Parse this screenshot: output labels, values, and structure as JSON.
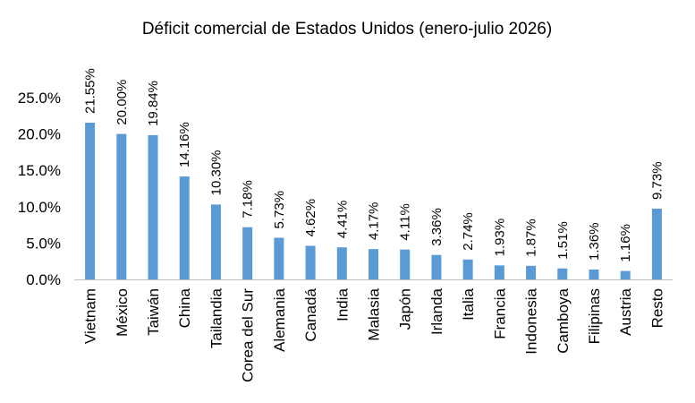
{
  "chart_data": {
    "type": "bar",
    "title": "Déficit comercial de Estados Unidos (enero-julio 2026)",
    "categories": [
      "Vietnam",
      "México",
      "Taiwán",
      "China",
      "Tailandia",
      "Corea del Sur",
      "Alemania",
      "Canadá",
      "India",
      "Malasia",
      "Japón",
      "Irlanda",
      "Italia",
      "Francia",
      "Indonesia",
      "Camboya",
      "Filipinas",
      "Austria",
      "Resto"
    ],
    "values": [
      21.55,
      20.0,
      19.84,
      14.16,
      10.3,
      7.18,
      5.73,
      4.62,
      4.41,
      4.17,
      4.11,
      3.36,
      2.74,
      1.93,
      1.87,
      1.51,
      1.36,
      1.16,
      9.73
    ],
    "data_labels": [
      "21.55%",
      "20.00%",
      "19.84%",
      "14.16%",
      "10.30%",
      "7.18%",
      "5.73%",
      "4.62%",
      "4.41%",
      "4.17%",
      "4.11%",
      "3.36%",
      "2.74%",
      "1.93%",
      "1.87%",
      "1.51%",
      "1.36%",
      "1.16%",
      "9.73%"
    ],
    "y_ticks": [
      0,
      5,
      10,
      15,
      20,
      25
    ],
    "y_tick_labels": [
      "0.0%",
      "5.0%",
      "10.0%",
      "15.0%",
      "20.0%",
      "25.0%"
    ],
    "ylim": [
      0,
      25
    ],
    "xlabel": "",
    "ylabel": "",
    "grid": false,
    "legend": "none",
    "bar_color": "#5b9bd5"
  }
}
